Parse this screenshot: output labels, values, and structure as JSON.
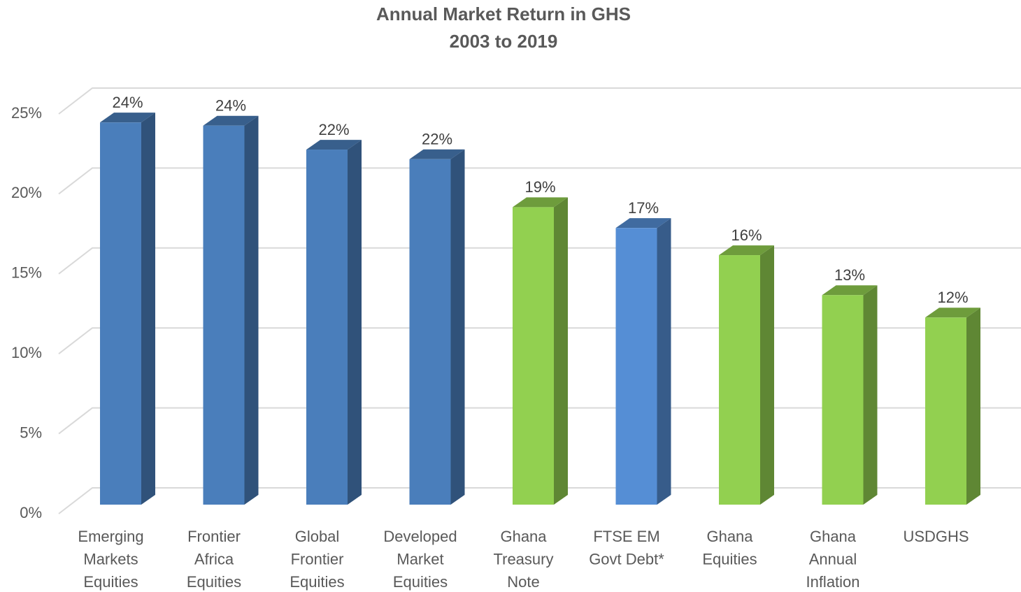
{
  "chart_data": {
    "type": "bar3d",
    "title": "Annual Market Return in GHS",
    "subtitle": "2003 to 2019",
    "categories": [
      [
        "Emerging",
        "Markets",
        "Equities"
      ],
      [
        "Frontier",
        "Africa",
        "Equities"
      ],
      [
        "Global",
        "Frontier",
        "Equities"
      ],
      [
        "Developed",
        "Market",
        "Equities"
      ],
      [
        "Ghana",
        "Treasury",
        "Note"
      ],
      [
        "FTSE EM",
        "Govt Debt*"
      ],
      [
        "Ghana",
        "Equities"
      ],
      [
        "Ghana",
        "Annual",
        "Inflation"
      ],
      [
        "USDGHS"
      ]
    ],
    "values": [
      23.9,
      23.7,
      22.2,
      21.6,
      18.6,
      17.3,
      15.6,
      13.1,
      11.7
    ],
    "value_labels": [
      "24%",
      "24%",
      "22%",
      "22%",
      "19%",
      "17%",
      "16%",
      "13%",
      "12%"
    ],
    "colors": [
      "#4a7ebb",
      "#4a7ebb",
      "#4a7ebb",
      "#4a7ebb",
      "#92d050",
      "#558ed5",
      "#92d050",
      "#92d050",
      "#92d050"
    ],
    "ylim": [
      0,
      25
    ],
    "yticks": [
      {
        "value": 0,
        "label": "0%"
      },
      {
        "value": 5,
        "label": "5%"
      },
      {
        "value": 10,
        "label": "10%"
      },
      {
        "value": 15,
        "label": "15%"
      },
      {
        "value": 20,
        "label": "20%"
      },
      {
        "value": 25,
        "label": "25%"
      }
    ],
    "grid": true
  }
}
